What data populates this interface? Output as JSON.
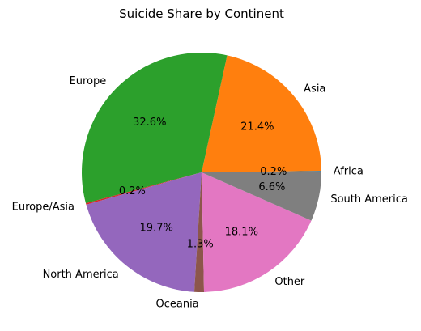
{
  "chart_data": {
    "type": "pie",
    "title": "Suicide Share by Continent",
    "slices": [
      {
        "label": "Africa",
        "value": 0.2,
        "pct_label": "0.2%",
        "color": "#1f77b4"
      },
      {
        "label": "Asia",
        "value": 21.4,
        "pct_label": "21.4%",
        "color": "#ff7f0e"
      },
      {
        "label": "Europe",
        "value": 32.6,
        "pct_label": "32.6%",
        "color": "#2ca02c"
      },
      {
        "label": "Europe/Asia",
        "value": 0.2,
        "pct_label": "0.2%",
        "color": "#d62728"
      },
      {
        "label": "North America",
        "value": 19.7,
        "pct_label": "19.7%",
        "color": "#9467bd"
      },
      {
        "label": "Oceania",
        "value": 1.3,
        "pct_label": "1.3%",
        "color": "#8c564b"
      },
      {
        "label": "Other",
        "value": 18.1,
        "pct_label": "18.1%",
        "color": "#e377c2"
      },
      {
        "label": "South America",
        "value": 6.6,
        "pct_label": "6.6%",
        "color": "#7f7f7f"
      }
    ],
    "start_angle": 0,
    "direction": "counterclockwise",
    "legend": "none"
  }
}
